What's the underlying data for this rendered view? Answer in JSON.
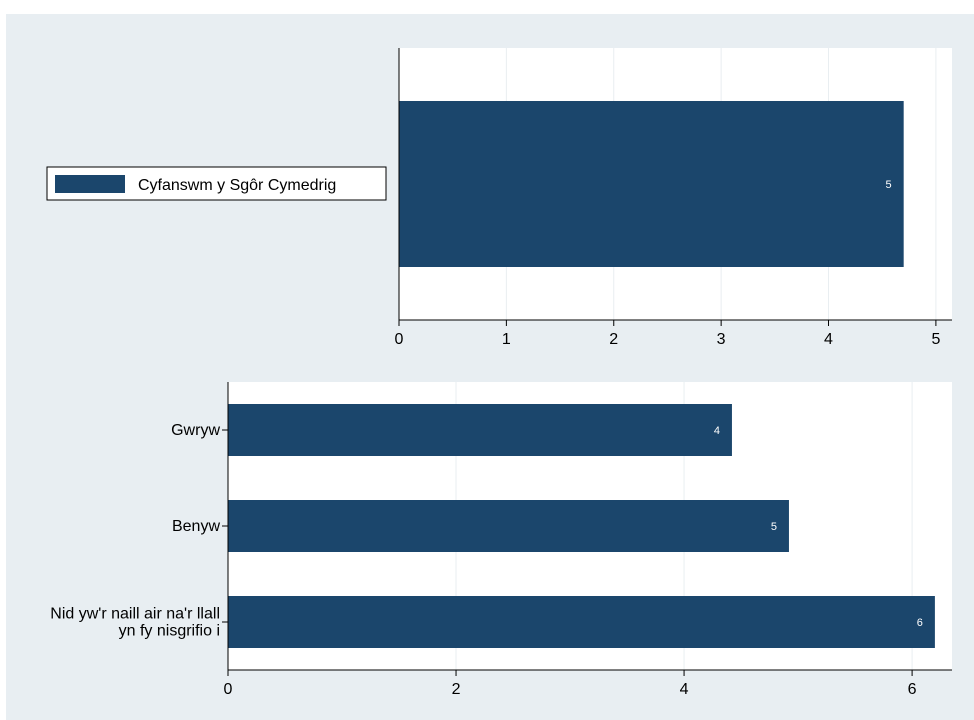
{
  "colors": {
    "background": "#e8eef2",
    "plot_bg": "#ffffff",
    "bar": "#1b466c",
    "grid": "#e9eef1",
    "axis": "#000000",
    "label_on_bar": "#ffffff"
  },
  "chart_data": [
    {
      "type": "bar",
      "orientation": "horizontal",
      "categories": [
        ""
      ],
      "series": [
        {
          "name": "Cyfanswm y Sgôr Cymedrig",
          "values": [
            4.7
          ],
          "labels": [
            "5"
          ]
        }
      ],
      "xlim": [
        0,
        5.15
      ],
      "xticks": [
        "0",
        "1",
        "2",
        "3",
        "4",
        "5"
      ],
      "grid": true,
      "legend": {
        "position": "left",
        "entries": [
          "Cyfanswm y Sgôr Cymedrig"
        ]
      }
    },
    {
      "type": "bar",
      "orientation": "horizontal",
      "categories": [
        "Gwryw",
        "Benyw",
        "Nid yw'r naill air na'r llall yn fy nisgrifio i"
      ],
      "category_lines": [
        [
          "Gwryw"
        ],
        [
          "Benyw"
        ],
        [
          "Nid yw'r naill air na'r llall",
          "yn fy nisgrifio i"
        ]
      ],
      "series": [
        {
          "values": [
            4.42,
            4.92,
            6.2
          ],
          "labels": [
            "4",
            "5",
            "6"
          ]
        }
      ],
      "xlim": [
        0,
        6.35
      ],
      "xticks": [
        "0",
        "2",
        "4",
        "6"
      ],
      "grid": true
    }
  ]
}
